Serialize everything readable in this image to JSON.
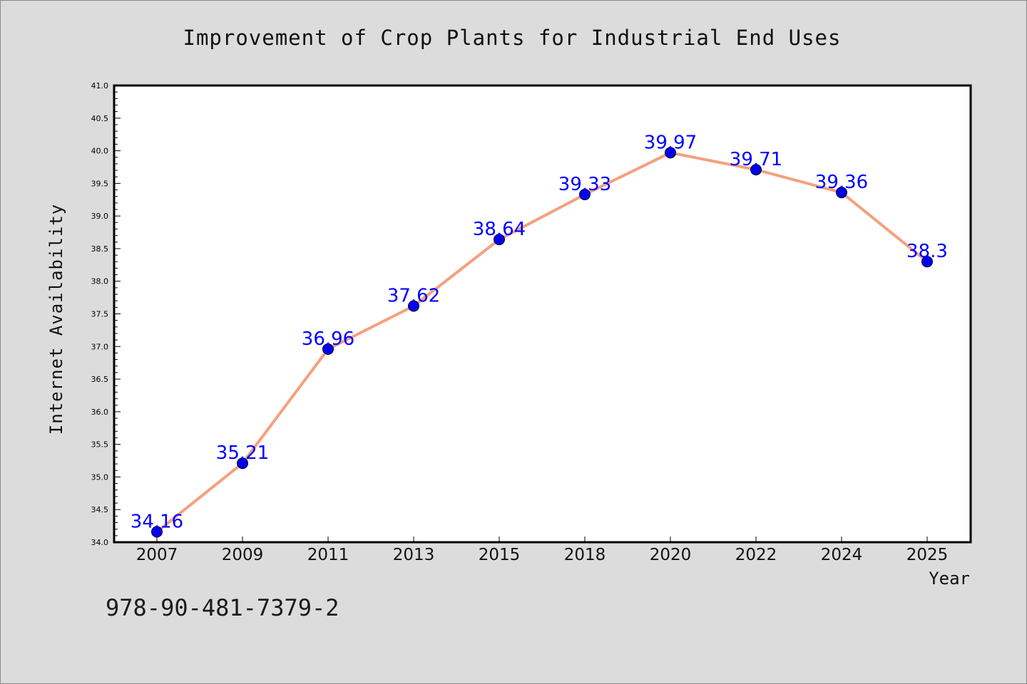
{
  "chart_data": {
    "type": "line",
    "title": "Improvement of Crop Plants for Industrial End Uses",
    "xlabel": "Year",
    "ylabel": "Internet Availability",
    "categories": [
      "2007",
      "2009",
      "2011",
      "2013",
      "2015",
      "2018",
      "2020",
      "2022",
      "2024",
      "2025"
    ],
    "series": [
      {
        "values": [
          34.16,
          35.21,
          36.96,
          37.62,
          38.64,
          39.33,
          39.97,
          39.71,
          39.36,
          38.3
        ],
        "data_labels": [
          "34.16",
          "35.21",
          "36.96",
          "37.62",
          "38.64",
          "39.33",
          "39.97",
          "39.71",
          "39.36",
          "38.3"
        ],
        "line_color": "#f4a07f",
        "marker_color": "#0000ee"
      }
    ],
    "ylim": [
      34.0,
      41.0
    ],
    "yticks": [
      "34.0",
      "34.5",
      "35.0",
      "35.5",
      "36.0",
      "36.5",
      "37.0",
      "37.5",
      "38.0",
      "38.5",
      "39.0",
      "39.5",
      "40.0",
      "40.5",
      "41.0"
    ],
    "grid": false,
    "label_color": "#0000ff"
  },
  "footer": {
    "code": "978-90-481-7379-2"
  }
}
